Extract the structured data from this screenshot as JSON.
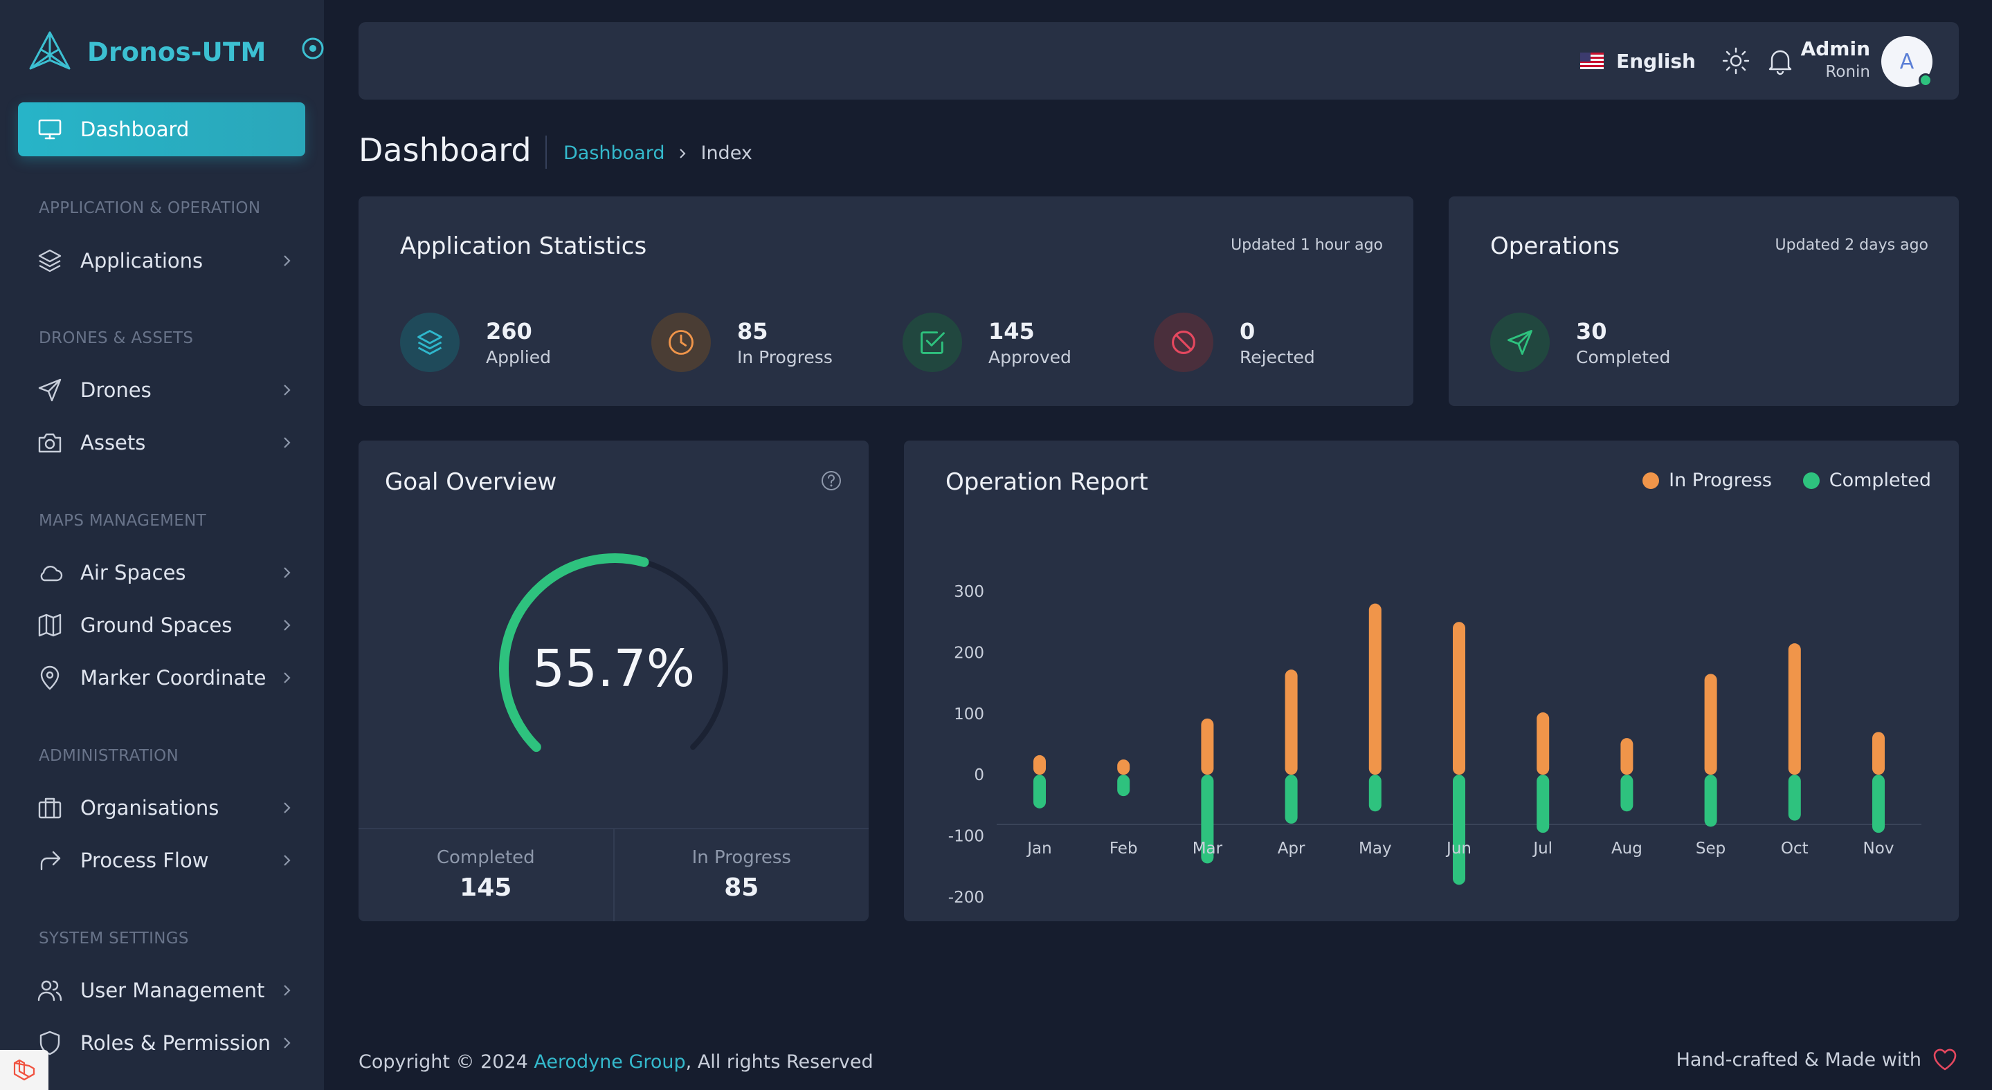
{
  "brand": {
    "name": "Dronos-UTM"
  },
  "sidebar": {
    "active": {
      "label": "Dashboard"
    },
    "sections": [
      {
        "title": "APPLICATION & OPERATION",
        "items": [
          {
            "label": "Applications"
          }
        ]
      },
      {
        "title": "DRONES & ASSETS",
        "items": [
          {
            "label": "Drones"
          },
          {
            "label": "Assets"
          }
        ]
      },
      {
        "title": "MAPS MANAGEMENT",
        "items": [
          {
            "label": "Air Spaces"
          },
          {
            "label": "Ground Spaces"
          },
          {
            "label": "Marker Coordinate"
          }
        ]
      },
      {
        "title": "ADMINISTRATION",
        "items": [
          {
            "label": "Organisations"
          },
          {
            "label": "Process Flow"
          }
        ]
      },
      {
        "title": "SYSTEM SETTINGS",
        "items": [
          {
            "label": "User Management"
          },
          {
            "label": "Roles & Permission"
          }
        ]
      }
    ]
  },
  "topbar": {
    "language": "English",
    "user": {
      "name": "Admin",
      "role": "Ronin",
      "initial": "A"
    }
  },
  "page": {
    "title": "Dashboard",
    "breadcrumb": {
      "link": "Dashboard",
      "current": "Index"
    }
  },
  "app_stats": {
    "title": "Application Statistics",
    "updated": "Updated 1 hour ago",
    "items": [
      {
        "value": "260",
        "label": "Applied",
        "icon": "layers-icon",
        "color": "#2fb7cc"
      },
      {
        "value": "85",
        "label": "In Progress",
        "icon": "clock-icon",
        "color": "#f0954a"
      },
      {
        "value": "145",
        "label": "Approved",
        "icon": "check-square-icon",
        "color": "#2ec27e"
      },
      {
        "value": "0",
        "label": "Rejected",
        "icon": "ban-icon",
        "color": "#e5485f"
      }
    ]
  },
  "operations": {
    "title": "Operations",
    "updated": "Updated 2 days ago",
    "item": {
      "value": "30",
      "label": "Completed",
      "icon": "send-icon",
      "color": "#2ec27e"
    }
  },
  "goal": {
    "title": "Goal Overview",
    "percent_label": "55.7%",
    "percent": 55.7,
    "completed_label": "Completed",
    "completed_value": "145",
    "progress_label": "In Progress",
    "progress_value": "85"
  },
  "chart_data": {
    "type": "bar",
    "title": "Operation Report",
    "categories": [
      "Jan",
      "Feb",
      "Mar",
      "Apr",
      "May",
      "Jun",
      "Jul",
      "Aug",
      "Sep",
      "Oct",
      "Nov"
    ],
    "series": [
      {
        "name": "In Progress",
        "color": "#f0954a",
        "values": [
          32,
          25,
          92,
          172,
          280,
          250,
          102,
          60,
          165,
          215,
          70
        ]
      },
      {
        "name": "Completed",
        "color": "#2ec27e",
        "values": [
          -55,
          -35,
          -145,
          -80,
          -60,
          -180,
          -95,
          -60,
          -85,
          -75,
          -95
        ]
      }
    ],
    "yticks": [
      300,
      200,
      100,
      0,
      -100,
      -200
    ],
    "ylim": [
      -200,
      300
    ],
    "stacked": true
  },
  "footer": {
    "prefix": "Copyright © 2024 ",
    "link": "Aerodyne Group",
    "suffix": ", All rights Reserved",
    "right": "Hand-crafted & Made with"
  }
}
